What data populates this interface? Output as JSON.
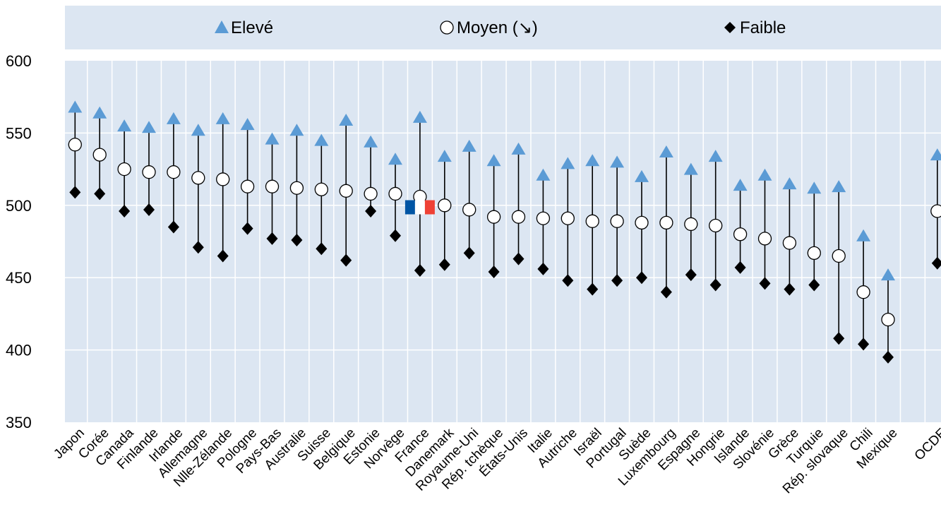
{
  "chart_data": {
    "type": "dot-range",
    "ylim": [
      350,
      600
    ],
    "yticks": [
      350,
      400,
      450,
      500,
      550,
      600
    ],
    "series": [
      {
        "key": "high",
        "name": "Elevé",
        "marker": "triangle",
        "color": "#5b9bd5"
      },
      {
        "key": "mean",
        "name": "Moyen",
        "marker": "circle",
        "color": "#ffffff"
      },
      {
        "key": "low",
        "name": "Faible",
        "marker": "diamond",
        "color": "#000000"
      }
    ],
    "mean_trend_symbol": "(↘)",
    "highlight_country": "France",
    "countries": [
      {
        "name": "Japon",
        "high": 568,
        "mean": 542,
        "low": 509
      },
      {
        "name": "Corée",
        "high": 564,
        "mean": 535,
        "low": 508
      },
      {
        "name": "Canada",
        "high": 555,
        "mean": 525,
        "low": 496
      },
      {
        "name": "Finlande",
        "high": 554,
        "mean": 523,
        "low": 497
      },
      {
        "name": "Irlande",
        "high": 560,
        "mean": 523,
        "low": 485
      },
      {
        "name": "Allemagne",
        "high": 552,
        "mean": 519,
        "low": 471
      },
      {
        "name": "Nlle-Zélande",
        "high": 560,
        "mean": 518,
        "low": 465
      },
      {
        "name": "Pologne",
        "high": 556,
        "mean": 513,
        "low": 484
      },
      {
        "name": "Pays-Bas",
        "high": 546,
        "mean": 513,
        "low": 477
      },
      {
        "name": "Australie",
        "high": 552,
        "mean": 512,
        "low": 476
      },
      {
        "name": "Suisse",
        "high": 545,
        "mean": 511,
        "low": 470
      },
      {
        "name": "Belgique",
        "high": 559,
        "mean": 510,
        "low": 462
      },
      {
        "name": "Estonie",
        "high": 544,
        "mean": 508,
        "low": 496
      },
      {
        "name": "Norvège",
        "high": 532,
        "mean": 508,
        "low": 479
      },
      {
        "name": "France",
        "high": 561,
        "mean": 506,
        "low": 455
      },
      {
        "name": "Danemark",
        "high": 534,
        "mean": 500,
        "low": 459
      },
      {
        "name": "Royaume-Uni",
        "high": 541,
        "mean": 497,
        "low": 467
      },
      {
        "name": "Rép. tchèque",
        "high": 531,
        "mean": 492,
        "low": 454
      },
      {
        "name": "États-Unis",
        "high": 539,
        "mean": 492,
        "low": 463
      },
      {
        "name": "Italie",
        "high": 521,
        "mean": 491,
        "low": 456
      },
      {
        "name": "Autriche",
        "high": 529,
        "mean": 491,
        "low": 448
      },
      {
        "name": "Israël",
        "high": 531,
        "mean": 489,
        "low": 442
      },
      {
        "name": "Portugal",
        "high": 530,
        "mean": 489,
        "low": 448
      },
      {
        "name": "Suède",
        "high": 520,
        "mean": 488,
        "low": 450
      },
      {
        "name": "Luxembourg",
        "high": 537,
        "mean": 488,
        "low": 440
      },
      {
        "name": "Espagne",
        "high": 525,
        "mean": 487,
        "low": 452
      },
      {
        "name": "Hongrie",
        "high": 534,
        "mean": 486,
        "low": 445
      },
      {
        "name": "Islande",
        "high": 514,
        "mean": 480,
        "low": 457
      },
      {
        "name": "Slovénie",
        "high": 521,
        "mean": 477,
        "low": 446
      },
      {
        "name": "Grèce",
        "high": 515,
        "mean": 474,
        "low": 442
      },
      {
        "name": "Turquie",
        "high": 512,
        "mean": 467,
        "low": 445
      },
      {
        "name": "Rép. slovaque",
        "high": 513,
        "mean": 465,
        "low": 408
      },
      {
        "name": "Chili",
        "high": 479,
        "mean": 440,
        "low": 404
      },
      {
        "name": "Mexique",
        "high": 452,
        "mean": 421,
        "low": 395
      },
      {
        "name": "",
        "gap": true
      },
      {
        "name": "OCDE",
        "high": 535,
        "mean": 496,
        "low": 460
      }
    ]
  }
}
